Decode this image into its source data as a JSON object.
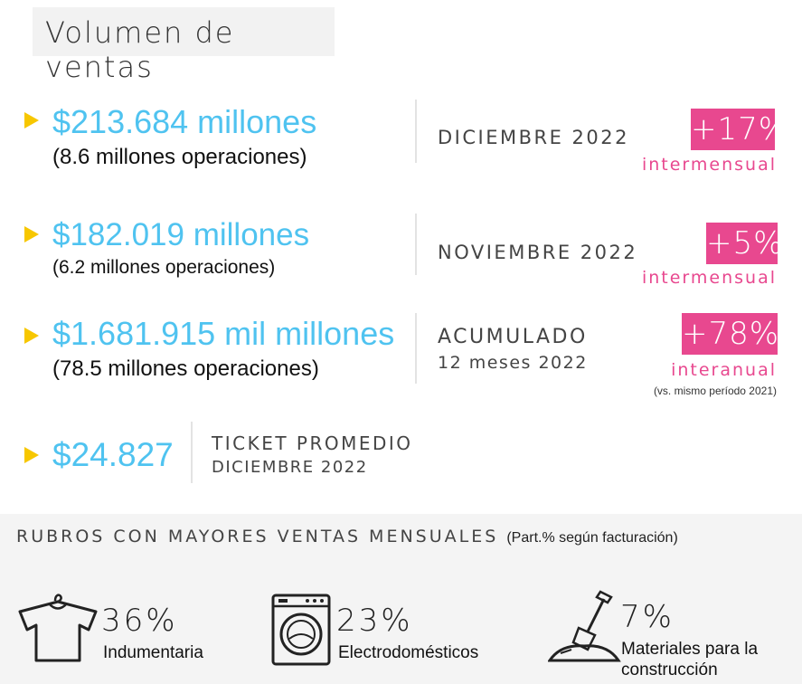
{
  "title": "Volumen de ventas",
  "sales": [
    {
      "amount": "$213.684 millones",
      "operations": "(8.6 millones operaciones)",
      "period": "DICIEMBRE 2022",
      "period_sub": "",
      "change": "+17%",
      "change_label": "intermensual",
      "note": ""
    },
    {
      "amount": "$182.019 millones",
      "operations": "(6.2 millones operaciones)",
      "period": "NOVIEMBRE 2022",
      "period_sub": "",
      "change": "+5%",
      "change_label": "intermensual",
      "note": ""
    },
    {
      "amount": "$1.681.915 mil millones",
      "operations": "(78.5 millones operaciones)",
      "period": "ACUMULADO",
      "period_sub": "12 meses 2022",
      "change": "+78%",
      "change_label": "interanual",
      "note": "(vs. mismo período 2021)"
    }
  ],
  "ticket": {
    "amount": "$24.827",
    "label": "TICKET PROMEDIO",
    "period": "DICIEMBRE 2022"
  },
  "rubros": {
    "title": "RUBROS CON MAYORES VENTAS MENSUALES",
    "subtitle": "(Part.% según facturación)",
    "items": [
      {
        "pct": "36%",
        "name": "Indumentaria",
        "icon": "tshirt-icon"
      },
      {
        "pct": "23%",
        "name": "Electrodomésticos",
        "icon": "washing-machine-icon"
      },
      {
        "pct": "7%",
        "name": "Materiales para la construcción",
        "icon": "shovel-icon"
      }
    ]
  },
  "colors": {
    "accent_blue": "#4fc3f0",
    "accent_pink": "#e8488f",
    "arrow_yellow": "#f7c700"
  }
}
